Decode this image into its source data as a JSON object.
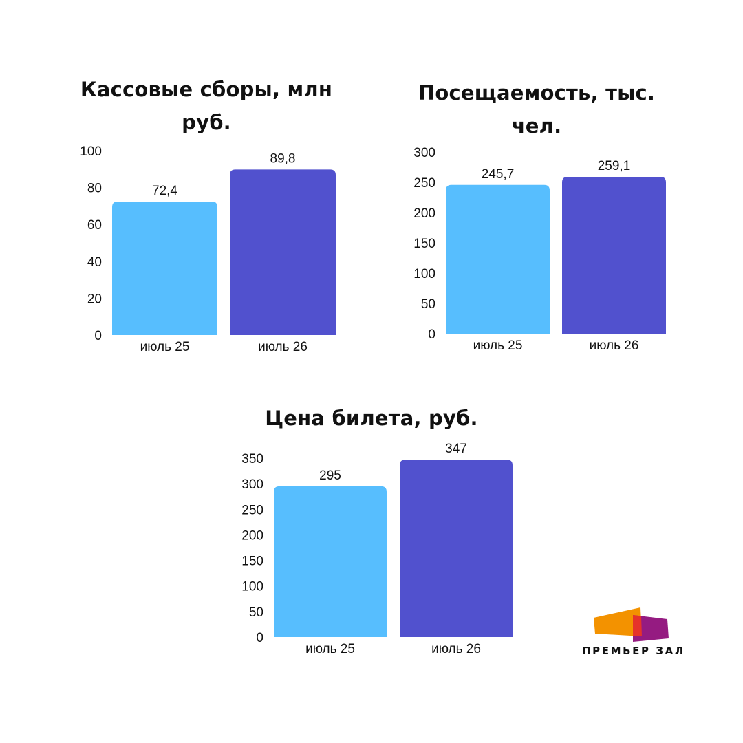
{
  "chart_data": [
    {
      "type": "bar",
      "title": "Кассовые сборы, млн руб.",
      "categories": [
        "июль 25",
        "июль 26"
      ],
      "values": [
        72.4,
        89.8
      ],
      "value_labels": [
        "72,4",
        "89,8"
      ],
      "ylim": [
        0,
        100
      ],
      "yticks": [
        0,
        20,
        40,
        60,
        80,
        100
      ],
      "colors": [
        "#57BEFE",
        "#5151CE"
      ],
      "grid": false,
      "legend": "none"
    },
    {
      "type": "bar",
      "title": "Посещаемость, тыс. чел.",
      "categories": [
        "июль 25",
        "июль 26"
      ],
      "values": [
        245.7,
        259.1
      ],
      "value_labels": [
        "245,7",
        "259,1"
      ],
      "ylim": [
        0,
        300
      ],
      "yticks": [
        0,
        50,
        100,
        150,
        200,
        250,
        300
      ],
      "colors": [
        "#57BEFE",
        "#5151CE"
      ],
      "grid": false,
      "legend": "none"
    },
    {
      "type": "bar",
      "title": "Цена билета, руб.",
      "categories": [
        "июль 25",
        "июль 26"
      ],
      "values": [
        295,
        347
      ],
      "value_labels": [
        "295",
        "347"
      ],
      "ylim": [
        0,
        350
      ],
      "yticks": [
        0,
        50,
        100,
        150,
        200,
        250,
        300,
        350
      ],
      "colors": [
        "#57BEFE",
        "#5151CE"
      ],
      "grid": false,
      "legend": "none"
    }
  ],
  "titles": {
    "chart1_line1": "Кассовые сборы, млн",
    "chart1_line2": "руб.",
    "chart2_line1": "Посещаемость, тыс.",
    "chart2_line2": "чел.",
    "chart3": "Цена билета, руб."
  },
  "logo": {
    "text": "ПРЕМЬЕР ЗАЛ",
    "colors": {
      "orange": "#F39200",
      "red": "#E6332A",
      "purple": "#951B81"
    }
  }
}
